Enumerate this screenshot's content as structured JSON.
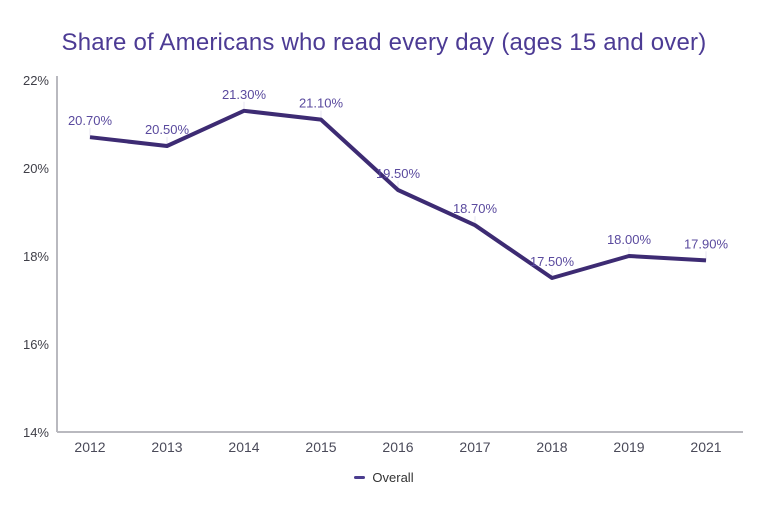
{
  "chart_data": {
    "type": "line",
    "title": "Share of Americans who read every day (ages 15 and over)",
    "categories": [
      "2012",
      "2013",
      "2014",
      "2015",
      "2016",
      "2017",
      "2018",
      "2019",
      "2021"
    ],
    "series": [
      {
        "name": "Overall",
        "values": [
          20.7,
          20.5,
          21.3,
          21.1,
          19.5,
          18.7,
          17.5,
          18.0,
          17.9
        ],
        "labels": [
          "20.70%",
          "20.50%",
          "21.30%",
          "21.10%",
          "19.50%",
          "18.70%",
          "17.50%",
          "18.00%",
          "17.90%"
        ]
      }
    ],
    "xlabel": "",
    "ylabel": "",
    "ylim": [
      14,
      22
    ],
    "y_ticks": [
      {
        "value": 22,
        "label": "22%"
      },
      {
        "value": 20,
        "label": "20%"
      },
      {
        "value": 18,
        "label": "18%"
      },
      {
        "value": 16,
        "label": "16%"
      },
      {
        "value": 14,
        "label": "14%"
      }
    ],
    "grid": false,
    "legend_position": "bottom"
  },
  "colors": {
    "background": "#ffffff",
    "title": "#4c3b94",
    "line": "#3d2b73",
    "data_label": "#5a4a9e",
    "leader_line": "#e7e4f1",
    "axis": "#b9b9bf",
    "x_tick": "#4a4a59",
    "y_tick": "#3f3f48",
    "legend_text": "#333333",
    "legend_marker": "#4b3d8f"
  }
}
